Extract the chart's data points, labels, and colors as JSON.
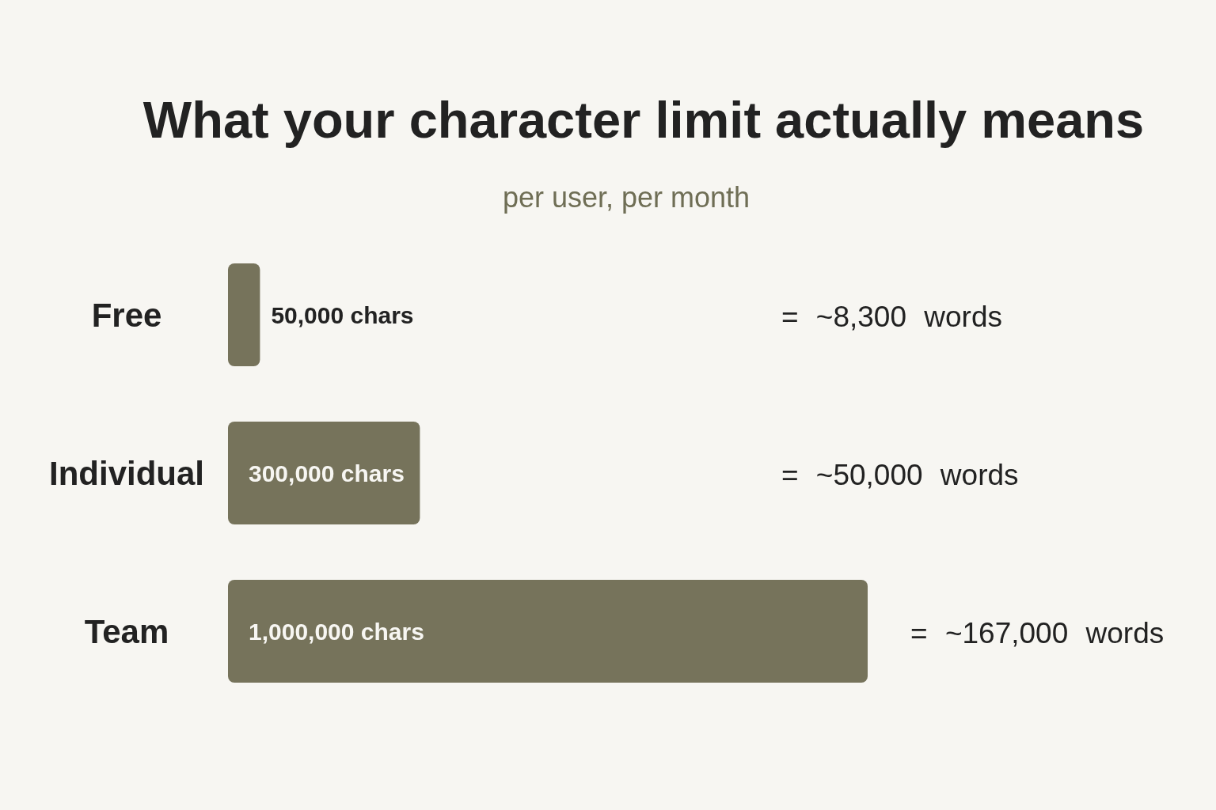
{
  "chart_data": {
    "type": "bar",
    "orientation": "horizontal",
    "title": "What your character limit actually means",
    "subtitle": "per user, per month",
    "categories": [
      "Free",
      "Individual",
      "Team"
    ],
    "values": [
      50000,
      300000,
      1000000
    ],
    "color": "#76735b",
    "value_labels": [
      "50,000 chars",
      "300,000 chars",
      "1,000,000 chars"
    ],
    "annotations": [
      "= ~8,300 words",
      "= ~50,000 words",
      "= ~167,000 words"
    ]
  }
}
